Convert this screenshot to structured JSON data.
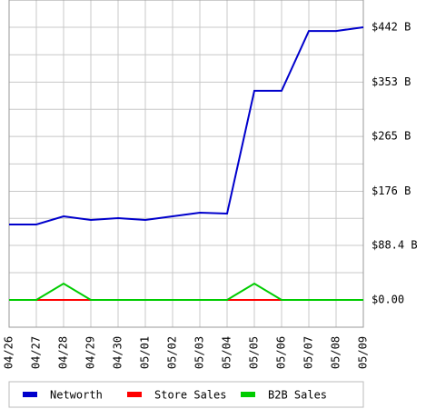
{
  "chart_data": {
    "type": "line",
    "categories": [
      "04/26",
      "04/27",
      "04/28",
      "04/29",
      "04/30",
      "05/01",
      "05/02",
      "05/03",
      "05/04",
      "05/05",
      "05/06",
      "05/07",
      "05/08",
      "05/09"
    ],
    "series": [
      {
        "name": "Networth",
        "color": "#0000cc",
        "values": [
          122.3,
          122.3,
          135.5,
          129.7,
          132.6,
          129.7,
          135.5,
          141.4,
          140.0,
          339.0,
          339.0,
          436.0,
          436.0,
          442.0
        ]
      },
      {
        "name": "Store Sales",
        "color": "#ff0000",
        "values": [
          0,
          0,
          0,
          0,
          0,
          0,
          0,
          0,
          0,
          0,
          0,
          0,
          0,
          0
        ]
      },
      {
        "name": "B2B Sales",
        "color": "#00cc00",
        "values": [
          0,
          0,
          26.5,
          0,
          0,
          0,
          0,
          0,
          0,
          26.5,
          0,
          0,
          0,
          0
        ]
      }
    ],
    "ylim": [
      -44.2,
      486.2
    ],
    "yticks": [
      {
        "value": 0,
        "label": "$0.00"
      },
      {
        "value": 88.4,
        "label": "$88.4 B"
      },
      {
        "value": 176,
        "label": "$176 B"
      },
      {
        "value": 265,
        "label": "$265 B"
      },
      {
        "value": 353,
        "label": "$353 B"
      },
      {
        "value": 442,
        "label": "$442 B"
      }
    ],
    "grid": true
  }
}
